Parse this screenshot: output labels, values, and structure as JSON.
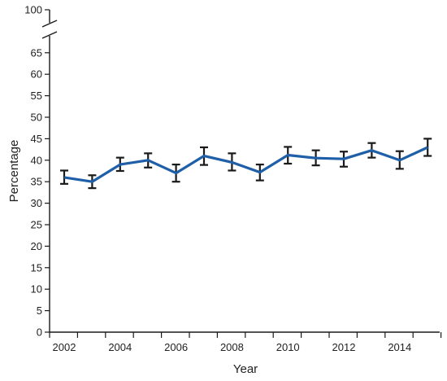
{
  "chart_data": {
    "type": "line",
    "title": "",
    "xlabel": "Year",
    "ylabel": "Percentage",
    "x": [
      2002,
      2003,
      2004,
      2005,
      2006,
      2007,
      2008,
      2009,
      2010,
      2011,
      2012,
      2013,
      2014,
      2015
    ],
    "series": [
      {
        "values": [
          36.0,
          35.0,
          39.0,
          40.0,
          37.0,
          41.0,
          39.5,
          37.2,
          41.2,
          40.5,
          40.3,
          42.3,
          40.0,
          43.0
        ],
        "lower": [
          34.5,
          33.5,
          37.5,
          38.3,
          35.0,
          38.9,
          37.6,
          35.3,
          39.2,
          38.8,
          38.5,
          40.6,
          38.0,
          41.0
        ],
        "upper": [
          37.6,
          36.5,
          40.6,
          41.6,
          39.0,
          43.0,
          41.6,
          39.0,
          43.1,
          42.3,
          42.0,
          44.0,
          42.1,
          45.0
        ]
      }
    ],
    "x_tick_labels": [
      "2002",
      "2004",
      "2006",
      "2008",
      "2010",
      "2012",
      "2014"
    ],
    "y_ticks": [
      0,
      5,
      10,
      15,
      20,
      25,
      30,
      35,
      40,
      45,
      50,
      55,
      60,
      65,
      100
    ],
    "ylim": [
      0,
      100
    ],
    "y_axis_break": [
      65,
      100
    ],
    "grid": false,
    "line_color": "#1f5fa8",
    "error_bar_color": "#1a1a1a"
  }
}
